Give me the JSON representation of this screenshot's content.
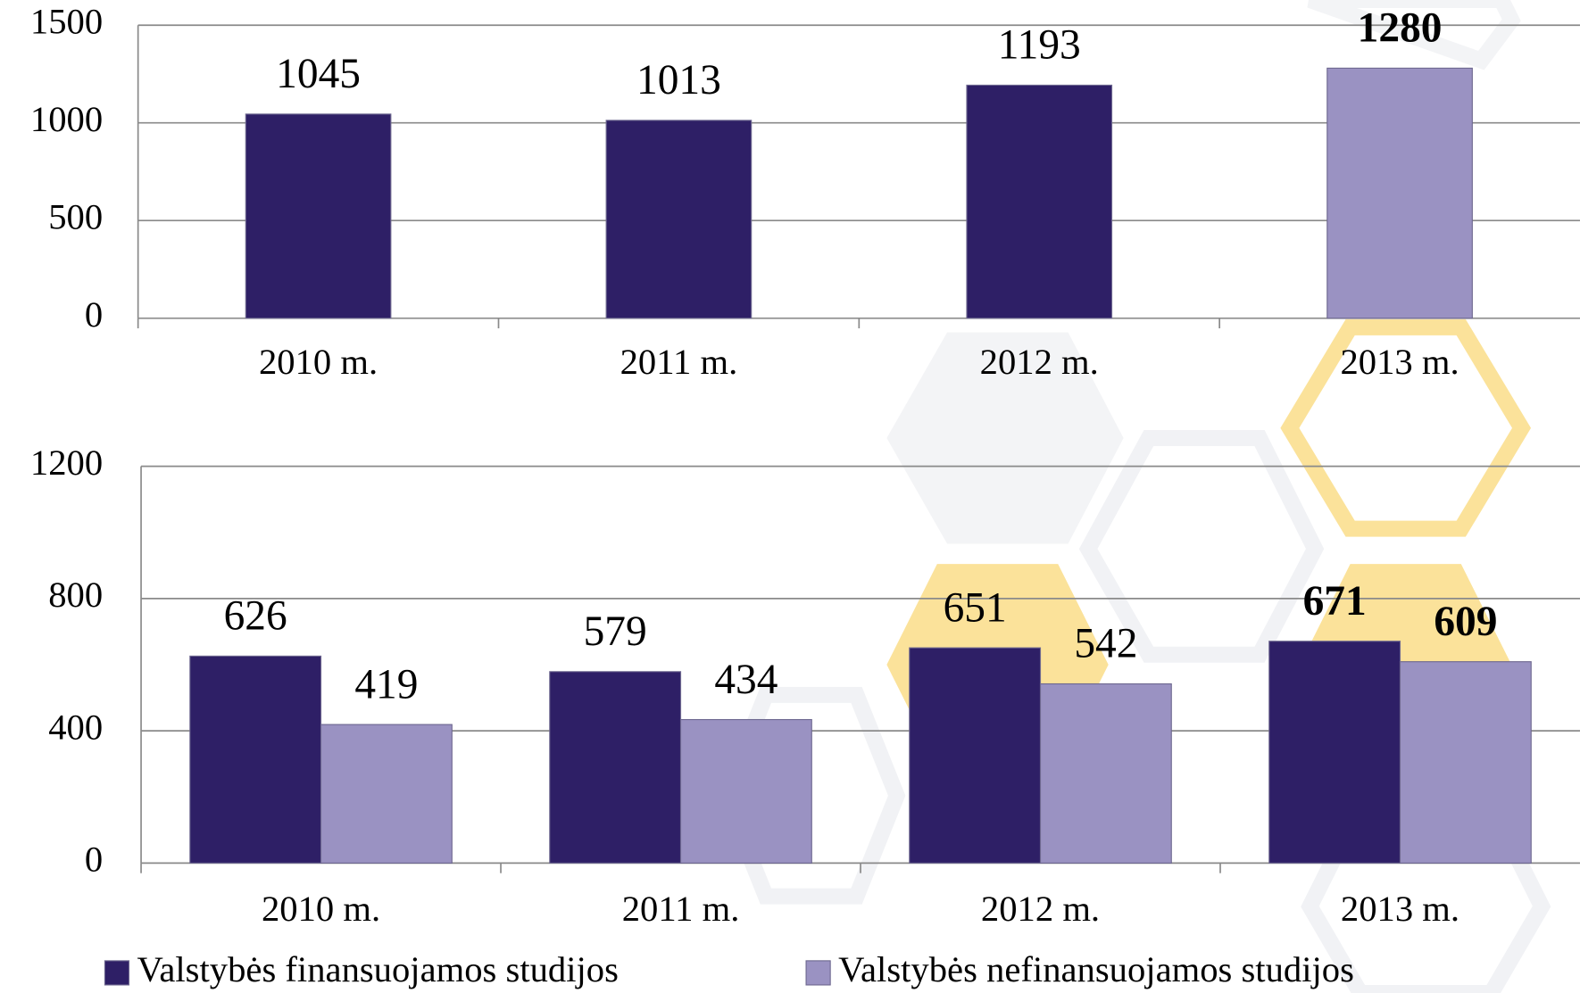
{
  "chart_data": [
    {
      "type": "bar",
      "categories": [
        "2010 m.",
        "2011 m.",
        "2012 m.",
        "2013 m."
      ],
      "values": [
        1045,
        1013,
        1193,
        1280
      ],
      "colors": [
        "#2e1f66",
        "#2e1f66",
        "#2e1f66",
        "#9a92c2"
      ],
      "bold_labels": [
        false,
        false,
        false,
        true
      ],
      "ylim": [
        0,
        1500
      ],
      "yticks": [
        0,
        500,
        1000,
        1500
      ],
      "grid": true
    },
    {
      "type": "grouped-bar",
      "categories": [
        "2010 m.",
        "2011 m.",
        "2012 m.",
        "2013 m."
      ],
      "series": [
        {
          "name": "Valstybės finansuojamos studijos",
          "color": "#2e1f66",
          "values": [
            626,
            579,
            651,
            671
          ]
        },
        {
          "name": "Valstybės nefinansuojamos studijos",
          "color": "#9a92c2",
          "values": [
            419,
            434,
            542,
            609
          ]
        }
      ],
      "bold_labels": [
        false,
        false,
        false,
        true
      ],
      "ylim": [
        0,
        1200
      ],
      "yticks": [
        0,
        400,
        800,
        1200
      ],
      "grid": true,
      "legend": "bottom"
    }
  ]
}
